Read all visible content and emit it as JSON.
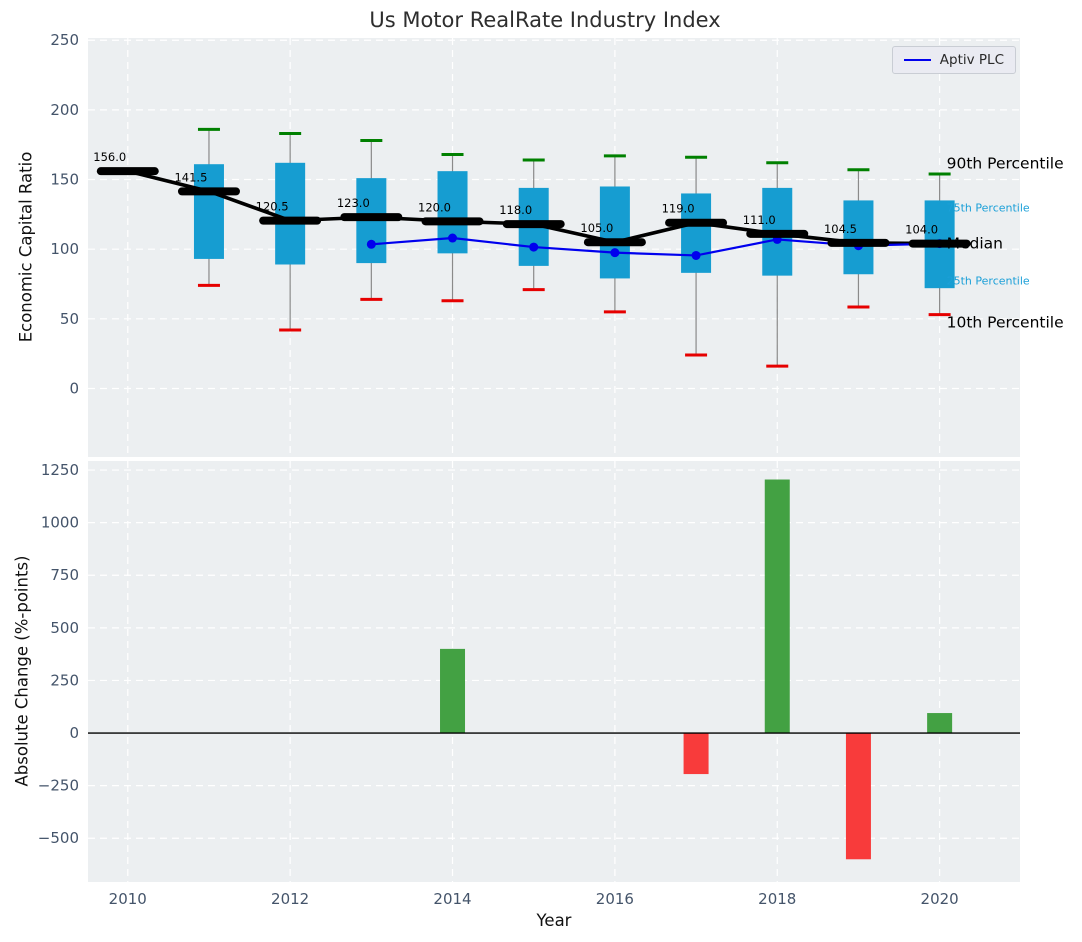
{
  "title": "Us Motor RealRate Industry Index",
  "legend": {
    "label": "Aptiv PLC"
  },
  "colors": {
    "plot_bg": "#eceff1",
    "grid": "#ffffff",
    "box_fill": "#169dd1",
    "whisker": "#8a8a8a",
    "cap_90": "#008000",
    "cap_10": "#e60000",
    "median": "#000000",
    "aptiv_line": "#0000ee",
    "bar_positive": "#43a143",
    "bar_negative": "#f83b3b",
    "tick_label": "#44546a",
    "annotation_small": "#1ca0d8",
    "annotation_large": "#000000",
    "zero_line": "#000000"
  },
  "chart_data": [
    {
      "type": "boxplot+line",
      "title": "Us Motor RealRate Industry Index",
      "ylabel": "Economic Capital Ratio",
      "ylim": [
        -49.2,
        251.6
      ],
      "xlim": [
        2009.51,
        2020.99
      ],
      "grid": "dashed-white",
      "legend_position": "upper right",
      "yticks": [
        {
          "v": 0,
          "label": "0"
        },
        {
          "v": 50,
          "label": "50"
        },
        {
          "v": 100,
          "label": "100"
        },
        {
          "v": 150,
          "label": "150"
        },
        {
          "v": 200,
          "label": "200"
        },
        {
          "v": 250,
          "label": "250"
        }
      ],
      "xticks": [
        2010,
        2012,
        2014,
        2016,
        2018,
        2020
      ],
      "boxes": [
        {
          "year": 2010,
          "median": 156.0,
          "label": "156.0"
        },
        {
          "year": 2011,
          "p90": 186,
          "p75": 161,
          "median": 141.5,
          "p25": 93,
          "p10": 74,
          "label": "141.5"
        },
        {
          "year": 2012,
          "p90": 183,
          "p75": 162,
          "median": 120.5,
          "p25": 89,
          "p10": 42,
          "label": "120.5"
        },
        {
          "year": 2013,
          "p90": 178,
          "p75": 151,
          "median": 123.0,
          "p25": 90,
          "p10": 64,
          "label": "123.0"
        },
        {
          "year": 2014,
          "p90": 168,
          "p75": 156,
          "median": 120.0,
          "p25": 97,
          "p10": 63,
          "label": "120.0"
        },
        {
          "year": 2015,
          "p90": 164,
          "p75": 144,
          "median": 118.0,
          "p25": 88,
          "p10": 71,
          "label": "118.0"
        },
        {
          "year": 2016,
          "p90": 167,
          "p75": 145,
          "median": 105.0,
          "p25": 79,
          "p10": 55,
          "label": "105.0"
        },
        {
          "year": 2017,
          "p90": 166,
          "p75": 140,
          "median": 119.0,
          "p25": 83,
          "p10": 24,
          "label": "119.0"
        },
        {
          "year": 2018,
          "p90": 162,
          "p75": 144,
          "median": 111.0,
          "p25": 81,
          "p10": 16,
          "label": "111.0"
        },
        {
          "year": 2019,
          "p90": 157,
          "p75": 135,
          "median": 104.5,
          "p25": 82,
          "p10": 58.5,
          "label": "104.5"
        },
        {
          "year": 2020,
          "p90": 154,
          "p75": 135,
          "median": 104.0,
          "p25": 72,
          "p10": 53,
          "label": "104.0"
        }
      ],
      "series": [
        {
          "name": "Aptiv PLC",
          "x": [
            2013,
            2014,
            2015,
            2016,
            2017,
            2018,
            2019,
            2020
          ],
          "values": [
            103.5,
            108,
            101.5,
            97.5,
            95.5,
            107,
            102.5,
            104
          ]
        }
      ],
      "annotations": [
        {
          "label": "90th Percentile",
          "v": 161.5,
          "size": "large"
        },
        {
          "label": "75th Percentile",
          "v": 130.0,
          "size": "small"
        },
        {
          "label": "Median",
          "v": 104.0,
          "size": "large"
        },
        {
          "label": "25th Percentile",
          "v": 77.5,
          "size": "small"
        },
        {
          "label": "10th Percentile",
          "v": 47.5,
          "size": "large"
        }
      ]
    },
    {
      "type": "bar",
      "ylabel": "Absolute Change (%-points)",
      "xlabel": "Year",
      "ylim": [
        -708,
        1293
      ],
      "xlim": [
        2009.51,
        2020.99
      ],
      "grid": "dashed-white",
      "yticks": [
        {
          "v": -500,
          "label": "−500"
        },
        {
          "v": -250,
          "label": "−250"
        },
        {
          "v": 0,
          "label": "0"
        },
        {
          "v": 250,
          "label": "250"
        },
        {
          "v": 500,
          "label": "500"
        },
        {
          "v": 750,
          "label": "750"
        },
        {
          "v": 1000,
          "label": "1000"
        },
        {
          "v": 1250,
          "label": "1250"
        }
      ],
      "xticks": [
        {
          "v": 2010,
          "label": "2010"
        },
        {
          "v": 2012,
          "label": "2012"
        },
        {
          "v": 2014,
          "label": "2014"
        },
        {
          "v": 2016,
          "label": "2016"
        },
        {
          "v": 2018,
          "label": "2018"
        },
        {
          "v": 2020,
          "label": "2020"
        }
      ],
      "bars": [
        {
          "year": 2014,
          "value": 400
        },
        {
          "year": 2017,
          "value": -195
        },
        {
          "year": 2018,
          "value": 1205
        },
        {
          "year": 2019,
          "value": -600
        },
        {
          "year": 2020,
          "value": 95
        }
      ]
    }
  ]
}
